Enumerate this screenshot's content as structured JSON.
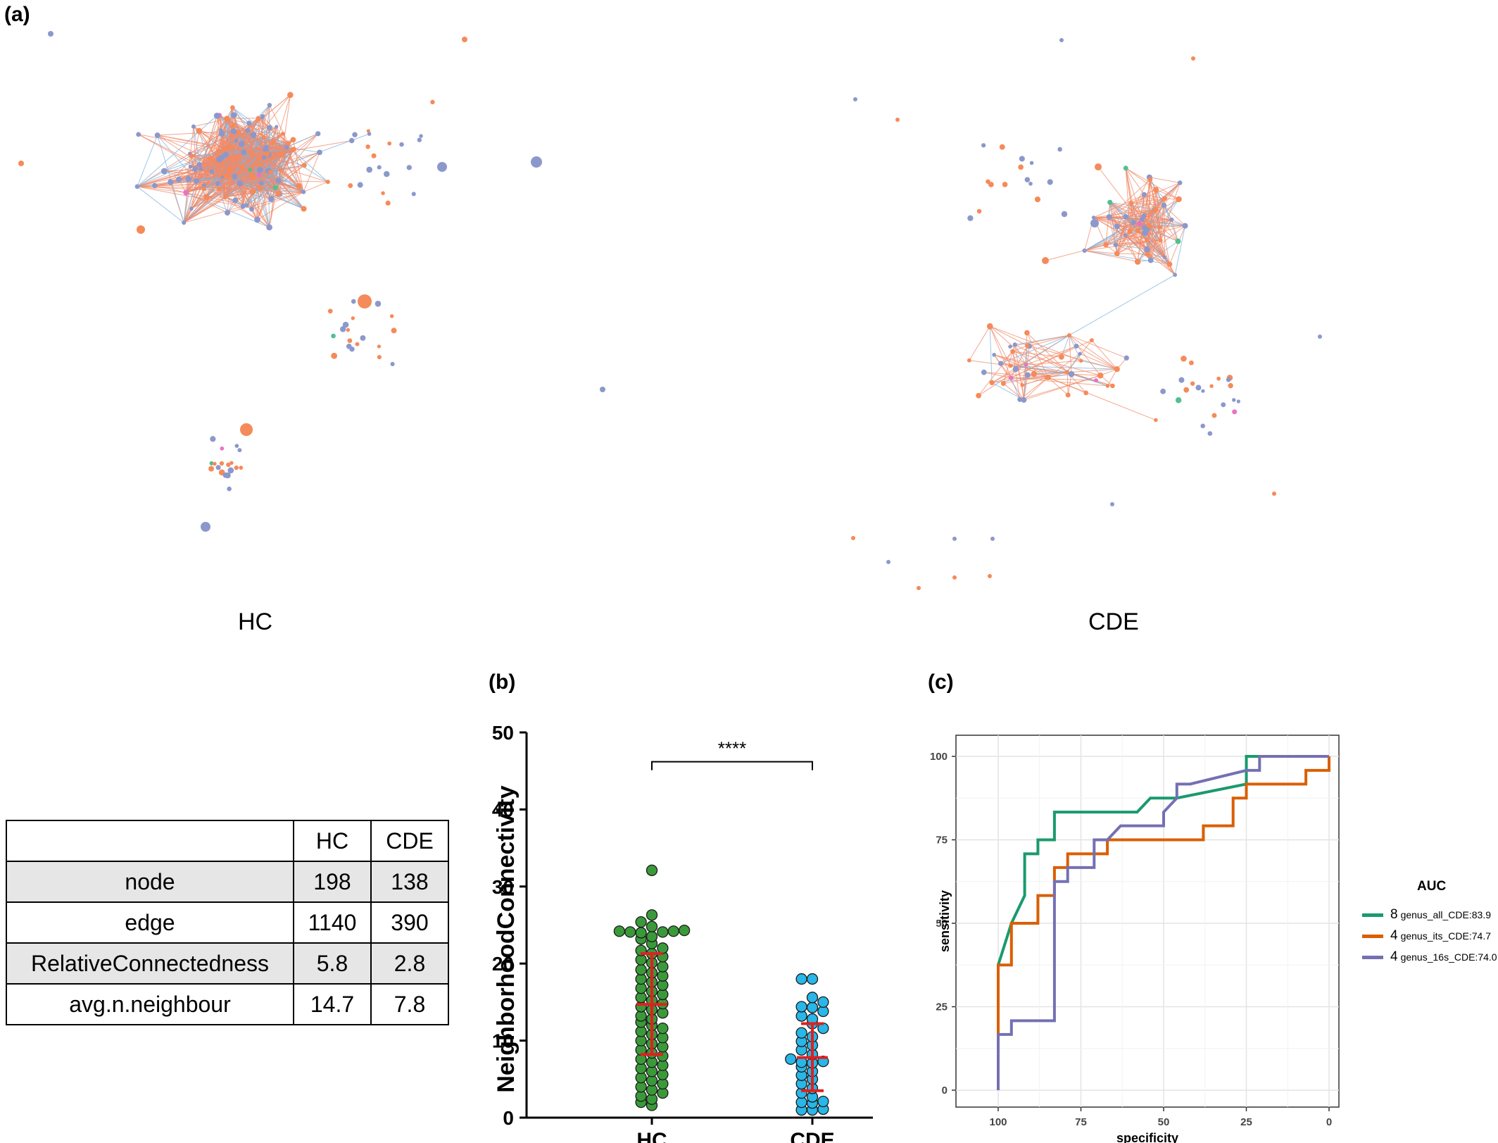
{
  "panels": {
    "a": "(a)",
    "b": "(b)",
    "c": "(c)"
  },
  "networks": {
    "hc_caption": "HC",
    "cde_caption": "CDE",
    "colors": {
      "positive_edge": "#f08a6a",
      "negative_edge": "#7fb3dd",
      "node_blue": "#8b98cc",
      "node_orange": "#f58a5a",
      "node_green": "#52c08e",
      "node_pink": "#e774c4",
      "node_lime": "#8fd34a"
    }
  },
  "table": {
    "header": [
      "",
      "HC",
      "CDE"
    ],
    "rows": [
      [
        "node",
        "198",
        "138"
      ],
      [
        "edge",
        "1140",
        "390"
      ],
      [
        "RelativeConnectedness",
        "5.8",
        "2.8"
      ],
      [
        "avg.n.neighbour",
        "14.7",
        "7.8"
      ]
    ]
  },
  "chart_data": [
    {
      "type": "scatter",
      "subtype": "beeswarm",
      "ylabel": "NeighborhoodConnectivity",
      "ylim": [
        0,
        50
      ],
      "yticks": [
        "0",
        "10",
        "20",
        "30",
        "40",
        "50"
      ],
      "categories": [
        "HC",
        "CDE"
      ],
      "significance": "****",
      "series": [
        {
          "name": "HC",
          "color": "#3a9a3a",
          "mean": 14.7,
          "sd_low": 8.2,
          "sd_high": 21.3,
          "values": [
            32.1,
            26.3,
            25.4,
            24.8,
            24.3,
            24.2,
            24.2,
            24.1,
            24.1,
            24.0,
            23.5,
            23.2,
            22.6,
            22.0,
            21.7,
            21.3,
            20.9,
            20.5,
            20.1,
            19.6,
            19.2,
            18.8,
            18.4,
            18.0,
            17.6,
            17.2,
            16.8,
            16.4,
            16.0,
            15.6,
            15.2,
            14.8,
            14.4,
            14.0,
            13.6,
            13.2,
            12.8,
            12.4,
            12.0,
            11.6,
            11.2,
            10.8,
            10.4,
            10.0,
            9.6,
            9.2,
            8.8,
            8.4,
            8.0,
            7.6,
            7.2,
            6.8,
            6.4,
            6.0,
            5.6,
            5.2,
            4.8,
            4.4,
            4.0,
            3.6,
            3.2,
            2.8,
            2.4,
            2.0,
            1.6
          ]
        },
        {
          "name": "CDE",
          "color": "#29b6e8",
          "mean": 7.8,
          "sd_low": 3.5,
          "sd_high": 12.2,
          "values": [
            18.0,
            18.0,
            15.6,
            15.0,
            14.4,
            14.3,
            13.8,
            13.2,
            12.8,
            12.2,
            11.6,
            11.0,
            10.5,
            9.9,
            9.4,
            8.8,
            8.2,
            7.6,
            7.3,
            7.2,
            7.1,
            6.6,
            6.0,
            5.5,
            5.0,
            4.4,
            3.8,
            3.2,
            2.7,
            2.1,
            2.0,
            1.9,
            1.1,
            1.0,
            1.0
          ]
        }
      ]
    },
    {
      "type": "line",
      "subtype": "roc",
      "xlabel": "specificity",
      "ylabel": "sensitivity",
      "xlim": [
        100,
        0
      ],
      "ylim": [
        0,
        100
      ],
      "xticks": [
        "100",
        "75",
        "50",
        "25",
        "0"
      ],
      "yticks": [
        "0",
        "25",
        "50",
        "75",
        "100"
      ],
      "legend_title": "AUC",
      "legend_position": "right",
      "series": [
        {
          "name": "genus_all_CDE:83.9",
          "count": "8",
          "color": "#1a9a6c",
          "x": [
            100,
            100,
            100,
            96,
            92,
            92,
            88,
            88,
            83,
            83,
            67,
            58,
            54,
            46,
            25,
            25,
            21,
            0
          ],
          "y": [
            0,
            16.7,
            37.5,
            50,
            58.3,
            70.8,
            70.8,
            75,
            75,
            83.3,
            83.3,
            83.3,
            87.5,
            87.5,
            91.7,
            100,
            100,
            100
          ]
        },
        {
          "name": "genus_its_CDE:74.7",
          "count": "4",
          "color": "#d95f02",
          "x": [
            100,
            100,
            100,
            96,
            96,
            88,
            88,
            83,
            83,
            79,
            79,
            67,
            67,
            38,
            38,
            29,
            29,
            25,
            25,
            7,
            7,
            0,
            0
          ],
          "y": [
            0,
            16.7,
            37.5,
            37.5,
            50,
            50,
            58.3,
            58.3,
            66.7,
            66.7,
            70.8,
            70.8,
            75,
            75,
            79.2,
            79.2,
            87.5,
            87.5,
            91.7,
            91.7,
            95.8,
            95.8,
            100
          ]
        },
        {
          "name": "genus_16s_CDE:74.0",
          "count": "4",
          "color": "#7570b3",
          "x": [
            100,
            100,
            96,
            96,
            83,
            83,
            79,
            79,
            71,
            71,
            67,
            63,
            50,
            50,
            46,
            46,
            42,
            25,
            21,
            21,
            0
          ],
          "y": [
            0,
            16.7,
            16.7,
            20.8,
            20.8,
            62.5,
            62.5,
            66.7,
            66.7,
            75,
            75,
            79.2,
            79.2,
            83.3,
            87.5,
            91.7,
            91.7,
            95.8,
            95.8,
            100,
            100
          ]
        }
      ]
    }
  ]
}
